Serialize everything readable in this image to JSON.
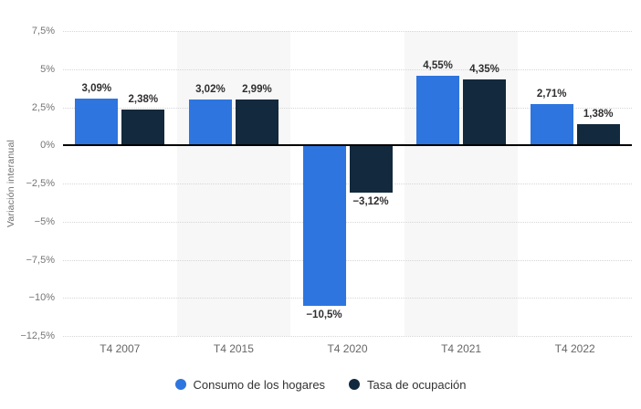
{
  "chart": {
    "y_axis_title": "Variación interanual"
  },
  "chart_data": {
    "type": "bar",
    "title": "",
    "xlabel": "",
    "ylabel": "Variación interanual",
    "categories": [
      "T4 2007",
      "T4 2015",
      "T4 2020",
      "T4 2021",
      "T4 2022"
    ],
    "series": [
      {
        "name": "Consumo de los hogares",
        "color": "#2E75DF",
        "values": [
          3.09,
          3.02,
          -10.5,
          4.55,
          2.71
        ],
        "labels": [
          "3,09%",
          "3,02%",
          "−10,5%",
          "4,55%",
          "2,71%"
        ]
      },
      {
        "name": "Tasa de ocupación",
        "color": "#13293D",
        "values": [
          2.38,
          2.99,
          -3.12,
          4.35,
          1.38
        ],
        "labels": [
          "2,38%",
          "2,99%",
          "−3,12%",
          "4,35%",
          "1,38%"
        ]
      }
    ],
    "ylim": [
      -12.5,
      7.5
    ],
    "ytick_step": 2.5,
    "yticks": [
      7.5,
      5,
      2.5,
      0,
      -2.5,
      -5,
      -7.5,
      -10,
      -12.5
    ],
    "ytick_labels": [
      "7,5%",
      "5%",
      "2,5%",
      "0%",
      "−2,5%",
      "−5%",
      "−7,5%",
      "−10%",
      "−12,5%"
    ],
    "grid": "horizontal-dotted",
    "plot_band_category_indexes": [
      1,
      3
    ],
    "legend_position": "bottom"
  }
}
